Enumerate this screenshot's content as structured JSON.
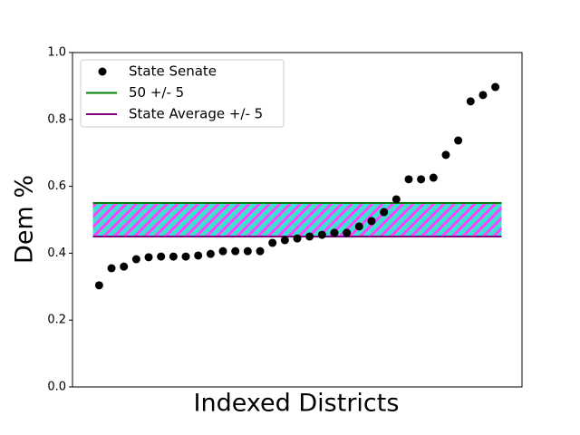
{
  "chart_data": {
    "type": "scatter",
    "xlabel": "Indexed Districts",
    "ylabel": "Dem %",
    "series": [
      {
        "name": "State Senate",
        "color": "#000000",
        "x": [
          0,
          1,
          2,
          3,
          4,
          5,
          6,
          7,
          8,
          9,
          10,
          11,
          12,
          13,
          14,
          15,
          16,
          17,
          18,
          19,
          20,
          21,
          22,
          23,
          24,
          25,
          26,
          27,
          28,
          29,
          30,
          31,
          32
        ],
        "values": [
          0.304,
          0.355,
          0.36,
          0.382,
          0.388,
          0.39,
          0.39,
          0.39,
          0.393,
          0.398,
          0.406,
          0.406,
          0.406,
          0.406,
          0.431,
          0.439,
          0.444,
          0.45,
          0.455,
          0.461,
          0.461,
          0.48,
          0.496,
          0.523,
          0.561,
          0.621,
          0.621,
          0.626,
          0.694,
          0.737,
          0.854,
          0.873,
          0.897
        ]
      }
    ],
    "bands": [
      {
        "name": "50 +/- 5",
        "color": "green",
        "fill": "#40e0d0",
        "lower": 0.45,
        "upper": 0.55,
        "x": [
          -0.5,
          32.5
        ]
      },
      {
        "name": "State Average +/- 5",
        "color": "purple",
        "hatch": "#ff40ff",
        "lower": 0.45,
        "upper": 0.55,
        "x": [
          -0.5,
          32.5
        ]
      }
    ],
    "xlim": [
      -2.15,
      34.15
    ],
    "ylim": [
      0,
      1
    ],
    "yticks": [
      {
        "value": 0,
        "label": "0.0"
      },
      {
        "value": 0.2,
        "label": "0.2"
      },
      {
        "value": 0.4,
        "label": "0.4"
      },
      {
        "value": 0.6,
        "label": "0.6"
      },
      {
        "value": 0.8,
        "label": "0.8"
      },
      {
        "value": 1,
        "label": "1.0"
      }
    ],
    "legend": "upper left"
  }
}
